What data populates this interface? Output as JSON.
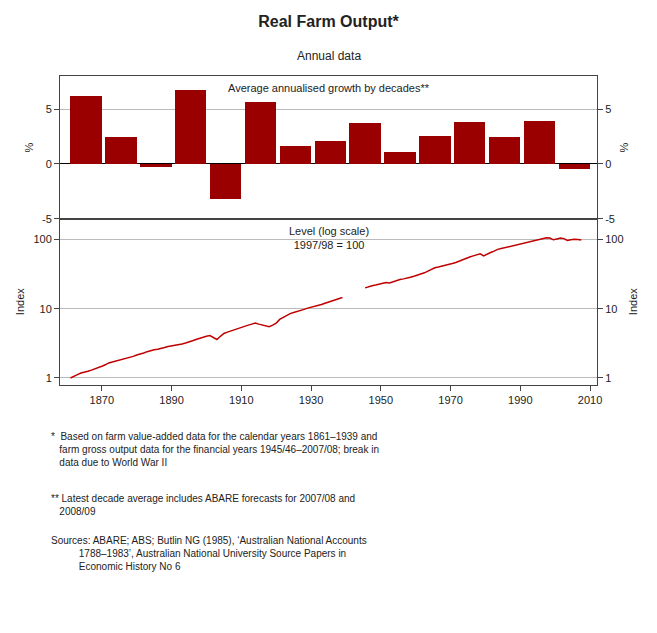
{
  "title": "Real Farm Output*",
  "subtitle": "Annual data",
  "annotations": [
    "*  Based on farm value-added data for the calendar years 1861–1939 and\n   farm gross output data for the financial years 1945/46–2007/08; break in\n   data due to World War II",
    "** Latest decade average includes ABARE forecasts for 2007/08 and\n   2008/09",
    "Sources: ABARE; ABS; Butlin NG (1985), ‘Australian National Accounts\n          1788–1983’, Australian National University Source Papers in\n          Economic History No 6"
  ],
  "chart_data": [
    {
      "type": "bar",
      "x": [
        1861,
        1871,
        1881,
        1891,
        1901,
        1911,
        1921,
        1931,
        1941,
        1951,
        1961,
        1971,
        1981,
        1991,
        2001
      ],
      "values": [
        6.2,
        2.4,
        -0.3,
        6.7,
        -3.2,
        5.6,
        1.6,
        2.1,
        3.7,
        1.1,
        2.5,
        3.8,
        2.4,
        3.9,
        -0.5
      ],
      "color": "#9B0000",
      "xlim": [
        1858,
        2012
      ],
      "ylim": [
        -5,
        8
      ],
      "yticks": [
        -5,
        0,
        5
      ],
      "ylabel": "%",
      "y2lim": [
        -5,
        8
      ],
      "y2ticks": [
        -5,
        0,
        5
      ],
      "y2label": "%",
      "annotations": [
        "Average annualised growth by decades**"
      ],
      "grid": true,
      "tick_labels": "y"
    },
    {
      "type": "line",
      "log": "y",
      "xlim": [
        1858,
        2012
      ],
      "xticks": [
        1870,
        1890,
        1910,
        1930,
        1950,
        1970,
        1990,
        2010
      ],
      "ylim": [
        0.8,
        200
      ],
      "yticks": [
        1,
        10,
        100
      ],
      "ylabel": "Index",
      "y2lim": [
        0.8,
        200
      ],
      "y2ticks": [
        1,
        10,
        100
      ],
      "y2label": "Index",
      "annotations": [
        "Level (log scale)\n1997/98 = 100"
      ],
      "grid": true,
      "series": [
        {
          "color": "#C00000",
          "x": [
            1861,
            1862,
            1863,
            1864,
            1865,
            1866,
            1867,
            1868,
            1869,
            1870,
            1871,
            1872,
            1873,
            1874,
            1875,
            1876,
            1877,
            1878,
            1879,
            1880,
            1881,
            1882,
            1883,
            1884,
            1885,
            1886,
            1887,
            1888,
            1889,
            1890,
            1891,
            1892,
            1893,
            1894,
            1895,
            1896,
            1897,
            1898,
            1899,
            1900,
            1901,
            1902,
            1903,
            1904,
            1905,
            1906,
            1907,
            1908,
            1909,
            1910,
            1911,
            1912,
            1913,
            1914,
            1915,
            1916,
            1917,
            1918,
            1919,
            1920,
            1921,
            1922,
            1923,
            1924,
            1925,
            1926,
            1927,
            1928,
            1929,
            1930,
            1931,
            1932,
            1933,
            1934,
            1935,
            1936,
            1937,
            1938,
            1939
          ],
          "values": [
            1.0,
            1.07,
            1.12,
            1.18,
            1.2,
            1.25,
            1.3,
            1.35,
            1.4,
            1.48,
            1.55,
            1.65,
            1.7,
            1.75,
            1.8,
            1.85,
            1.9,
            1.95,
            2.05,
            2.15,
            2.2,
            2.3,
            2.4,
            2.5,
            2.55,
            2.6,
            2.65,
            2.75,
            2.85,
            2.9,
            3.0,
            3.05,
            3.1,
            3.2,
            3.3,
            3.45,
            3.6,
            3.75,
            3.9,
            4.0,
            4.1,
            3.8,
            3.6,
            4.0,
            4.4,
            4.6,
            4.8,
            5.0,
            5.2,
            5.4,
            5.6,
            5.8,
            6.0,
            6.2,
            6.0,
            5.8,
            5.6,
            5.5,
            5.8,
            6.2,
            7.0,
            7.5,
            8.0,
            8.5,
            8.8,
            9.2,
            9.5,
            9.8,
            10.2,
            10.5,
            10.8,
            11.0,
            11.5,
            12.0,
            12.5,
            13.0,
            13.5,
            14.0,
            14.5
          ]
        },
        {
          "color": "#C00000",
          "x": [
            1945.5,
            1946.5,
            1947.5,
            1948.5,
            1949.5,
            1950.5,
            1951.5,
            1952.5,
            1953.5,
            1954.5,
            1955.5,
            1956.5,
            1957.5,
            1958.5,
            1959.5,
            1960.5,
            1961.5,
            1962.5,
            1963.5,
            1964.5,
            1965.5,
            1966.5,
            1967.5,
            1968.5,
            1969.5,
            1970.5,
            1971.5,
            1972.5,
            1973.5,
            1974.5,
            1975.5,
            1976.5,
            1977.5,
            1978.5,
            1979.5,
            1980.5,
            1981.5,
            1982.5,
            1983.5,
            1984.5,
            1985.5,
            1986.5,
            1987.5,
            1988.5,
            1989.5,
            1990.5,
            1991.5,
            1992.5,
            1993.5,
            1994.5,
            1995.5,
            1996.5,
            1997.5,
            1998.5,
            1999.5,
            2000.5,
            2001.5,
            2002.5,
            2003.5,
            2004.5,
            2005.5,
            2006.5,
            2007.5
          ],
          "values": [
            20.0,
            21.0,
            21.5,
            22.0,
            22.5,
            23.0,
            24.0,
            23.5,
            24.5,
            25.5,
            26.5,
            27.0,
            27.5,
            28.5,
            29.5,
            30.5,
            31.5,
            33.0,
            35.0,
            37.0,
            39.0,
            40.0,
            41.0,
            42.0,
            43.5,
            45.0,
            46.5,
            49.0,
            51.0,
            53.0,
            56.0,
            58.0,
            60.0,
            62.0,
            58.0,
            62.0,
            65.0,
            68.0,
            72.0,
            74.0,
            76.0,
            80.0,
            82.0,
            84.0,
            86.0,
            88.0,
            90.0,
            93.0,
            96.0,
            98.0,
            100.0,
            103.0,
            106.0,
            105.0,
            99.0,
            102.0,
            105.0,
            103.0,
            97.0,
            99.0,
            101.0,
            100.0,
            98.0
          ]
        }
      ]
    }
  ]
}
